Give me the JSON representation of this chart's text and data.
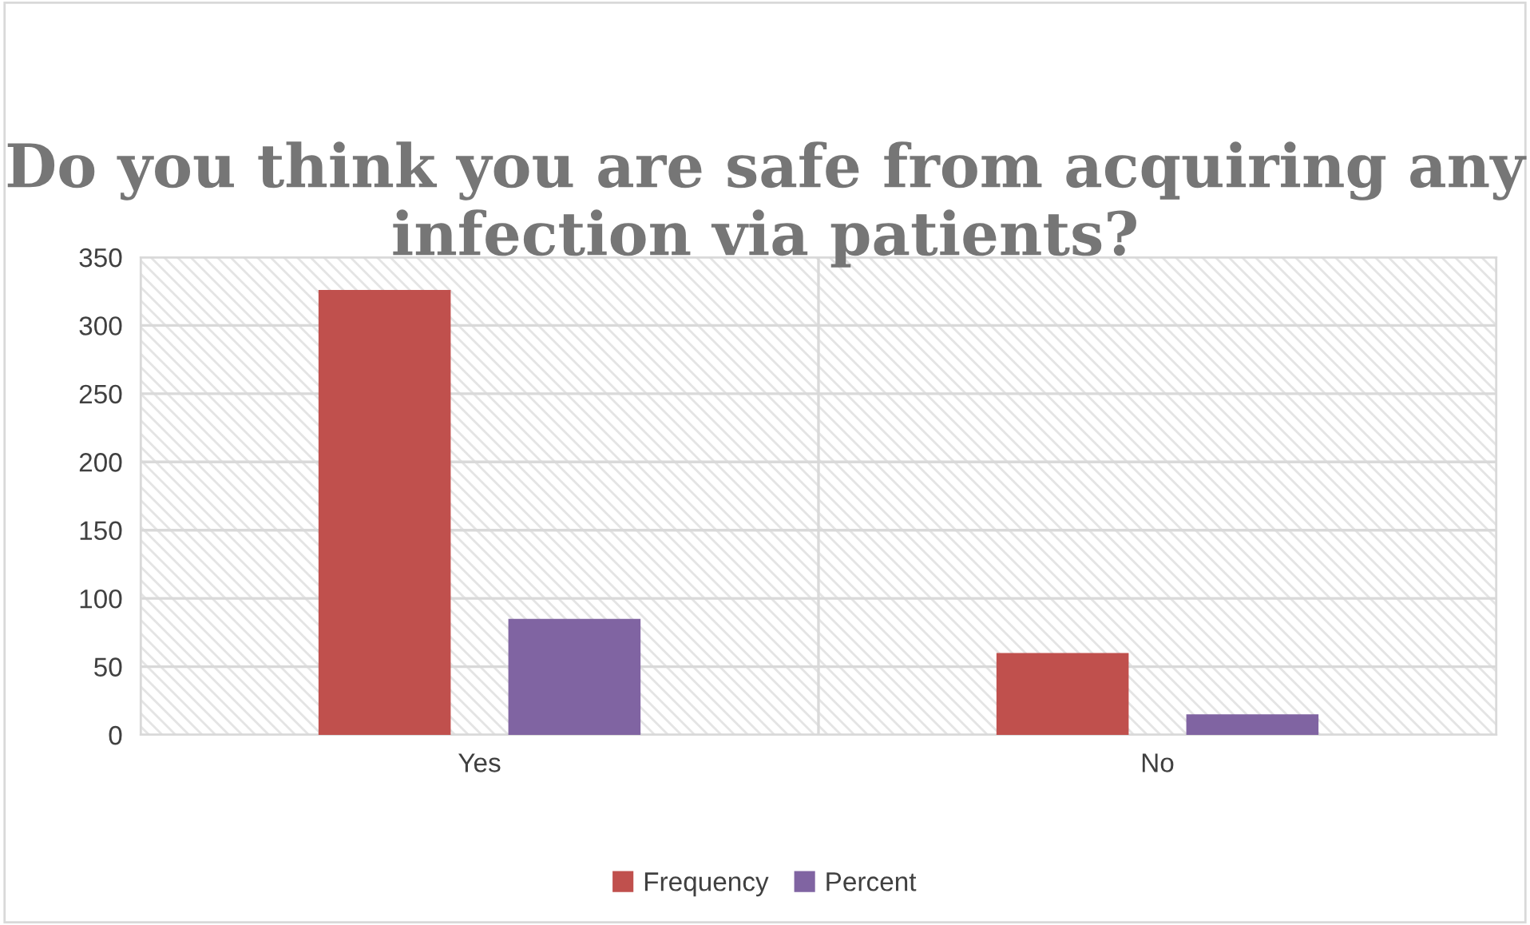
{
  "chart_data": {
    "type": "bar",
    "title": "Do you think you are safe from acquiring any infection via patients?",
    "categories": [
      "Yes",
      "No"
    ],
    "series": [
      {
        "name": "Frequency",
        "color": "#c0504d",
        "values": [
          326,
          60
        ]
      },
      {
        "name": "Percent",
        "color": "#8064a2",
        "values": [
          85,
          15
        ]
      }
    ],
    "ylim": [
      0,
      350
    ],
    "yticks": [
      0,
      50,
      100,
      150,
      200,
      250,
      300,
      350
    ],
    "grid": true,
    "legend": "bottom"
  }
}
